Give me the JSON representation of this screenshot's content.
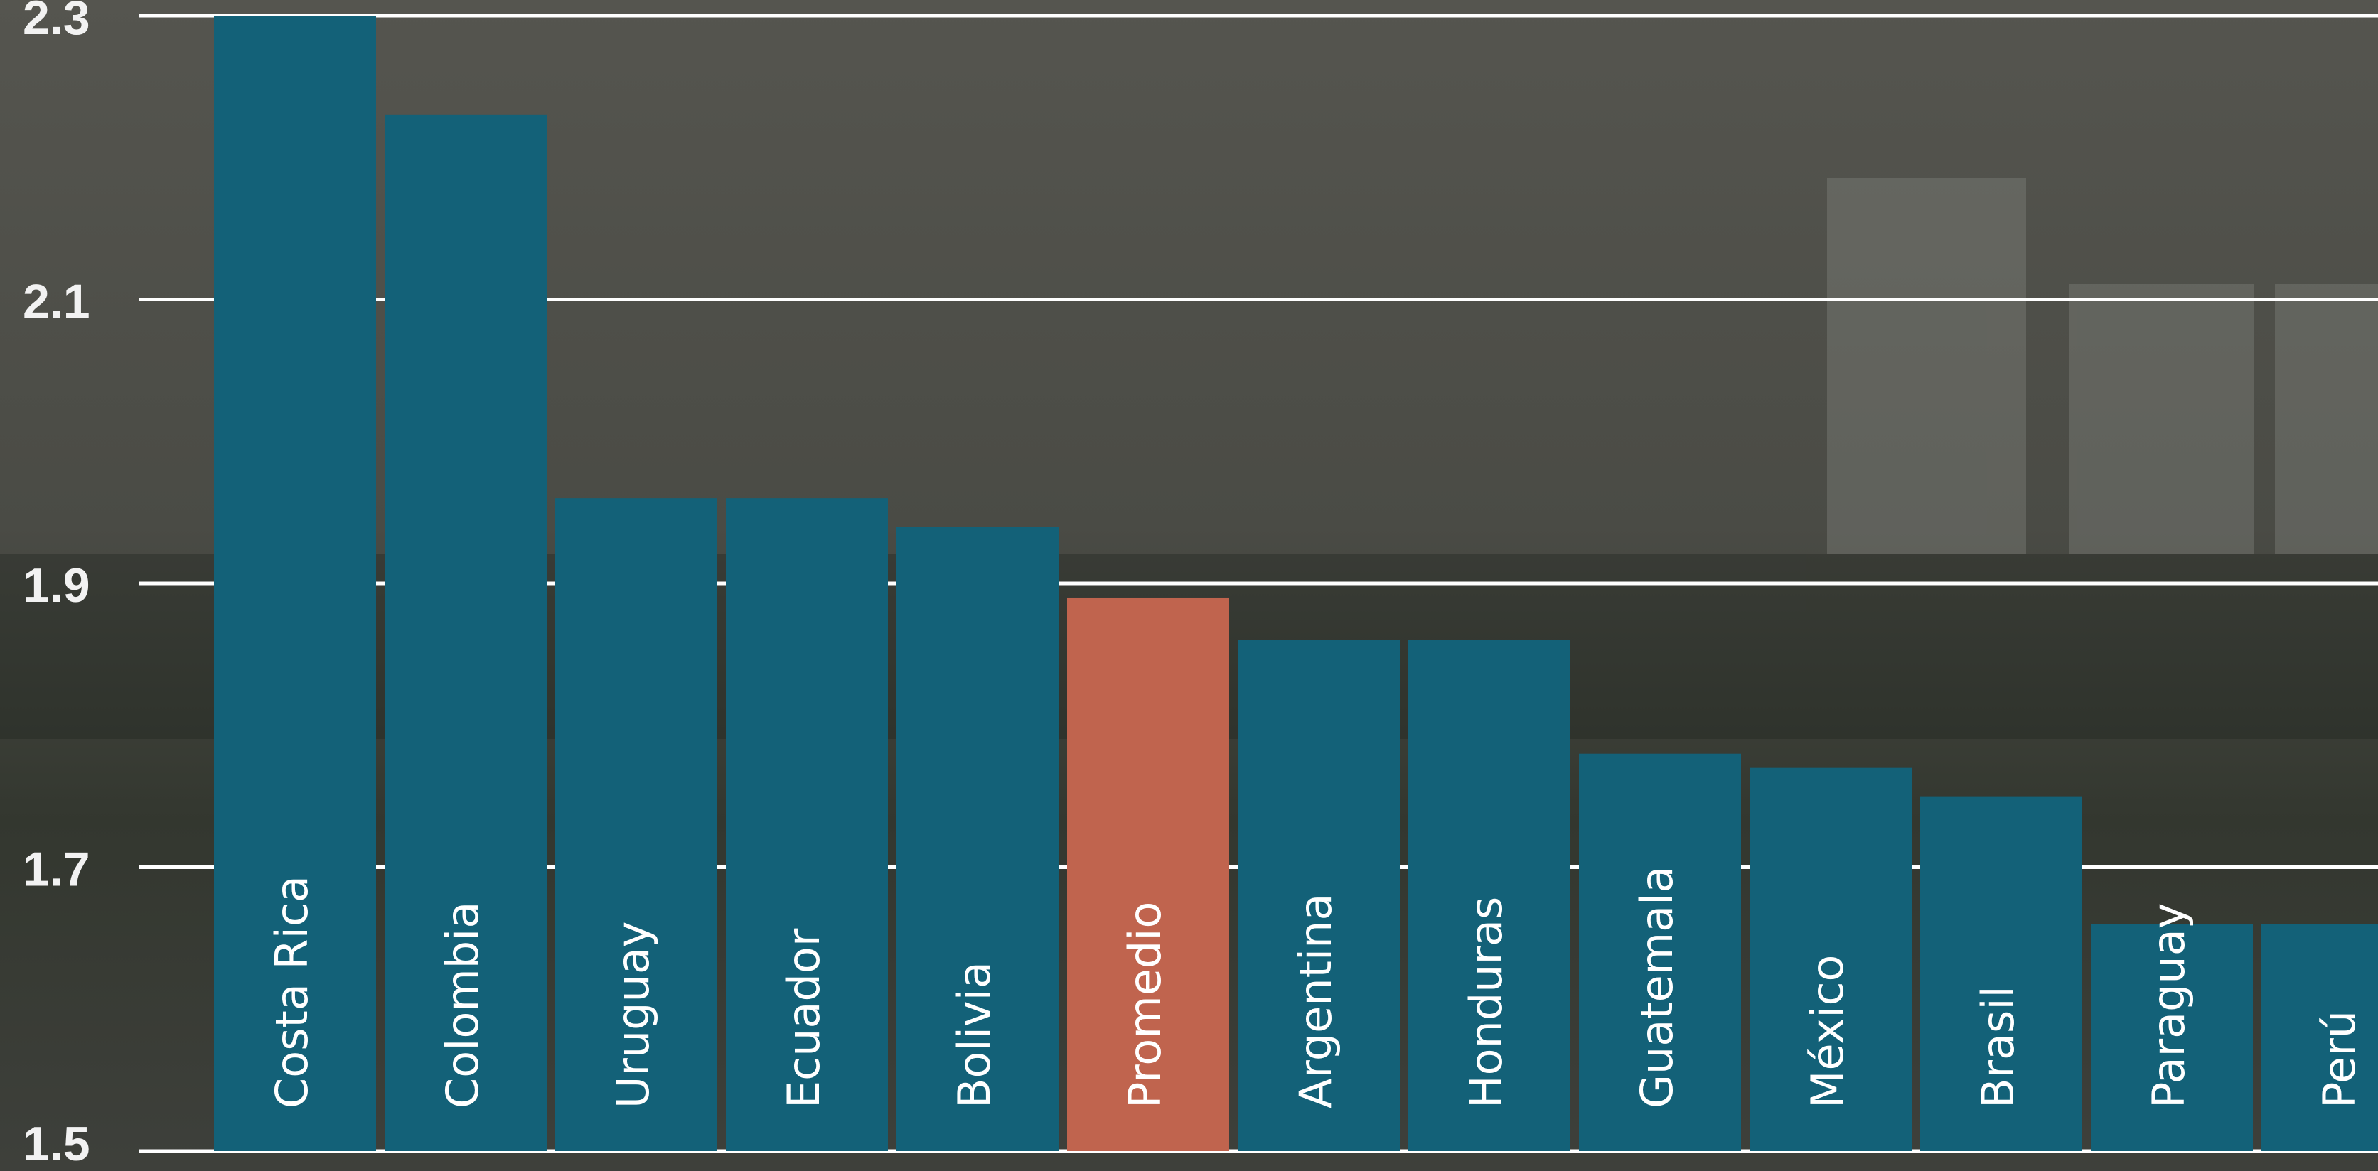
{
  "chart_data": {
    "type": "bar",
    "categories": [
      "Costa Rica",
      "Colombia",
      "Uruguay",
      "Ecuador",
      "Bolivia",
      "Promedio",
      "Argentina",
      "Honduras",
      "Guatemala",
      "México",
      "Brasil",
      "Paraguay",
      "Perú"
    ],
    "values": [
      2.3,
      2.23,
      1.96,
      1.96,
      1.94,
      1.89,
      1.86,
      1.86,
      1.78,
      1.77,
      1.75,
      1.66,
      1.66
    ],
    "colors": [
      "#136178",
      "#136178",
      "#136178",
      "#136178",
      "#136178",
      "#c0644e",
      "#136178",
      "#136178",
      "#136178",
      "#136178",
      "#136178",
      "#136178",
      "#136178"
    ],
    "ylim": [
      1.5,
      2.3
    ],
    "yticks": [
      1.5,
      1.7,
      1.9,
      2.1,
      2.3
    ],
    "grid": true
  }
}
